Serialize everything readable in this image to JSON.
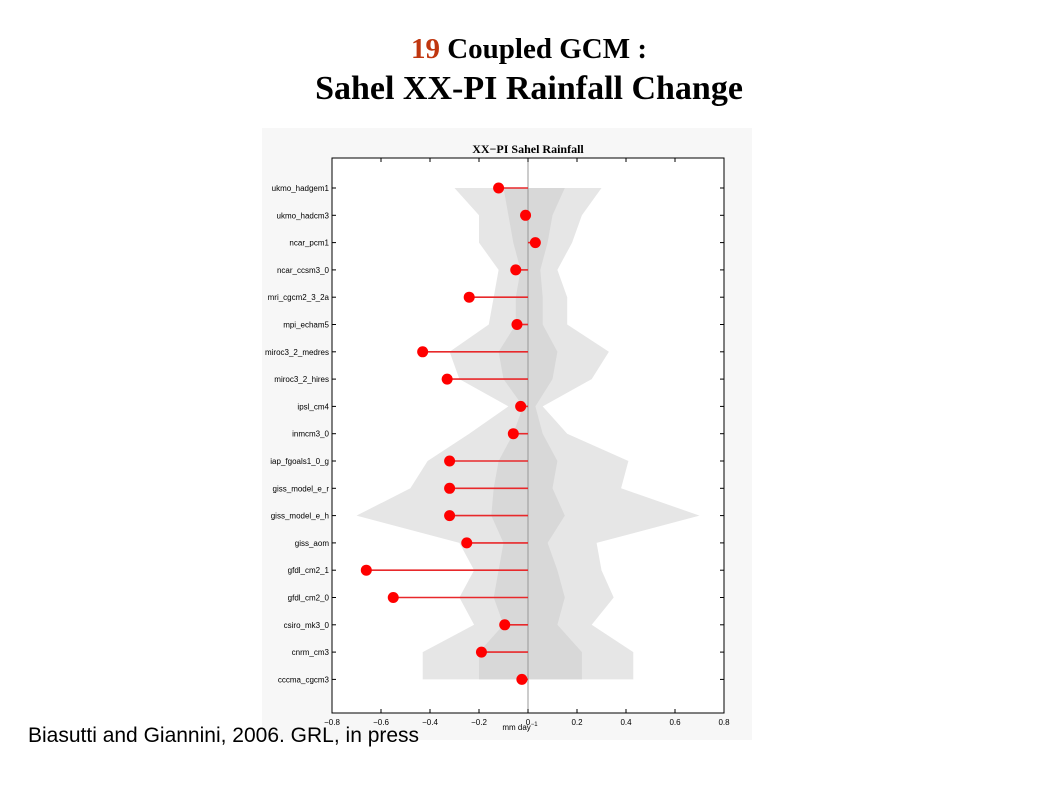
{
  "page": {
    "title_number": "19",
    "title_rest": " Coupled GCM :",
    "title_main": "Sahel XX-PI Rainfall Change",
    "citation": "Biasutti and Giannini, 2006. GRL, in press"
  },
  "chart_data": {
    "type": "lollipop",
    "title": "XX−PI Sahel Rainfall",
    "xlabel": "mm day",
    "xlabel_superscript": "−1",
    "xlim": [
      -0.8,
      0.8
    ],
    "xticks": [
      -0.8,
      -0.6,
      -0.4,
      -0.2,
      0,
      0.2,
      0.4,
      0.6,
      0.8
    ],
    "xtick_labels": [
      "−0.8",
      "−0.6",
      "−0.4",
      "−0.2",
      "0",
      "0.2",
      "0.4",
      "0.6",
      "0.8"
    ],
    "categories": [
      "ukmo_hadgem1",
      "ukmo_hadcm3",
      "ncar_pcm1",
      "ncar_ccsm3_0",
      "mri_cgcm2_3_2a",
      "mpi_echam5",
      "miroc3_2_medres",
      "miroc3_2_hires",
      "ipsl_cm4",
      "inmcm3_0",
      "iap_fgoals1_0_g",
      "giss_model_e_r",
      "giss_model_e_h",
      "giss_aom",
      "gfdl_cm2_1",
      "gfdl_cm2_0",
      "csiro_mk3_0",
      "cnrm_cm3",
      "cccma_cgcm3"
    ],
    "values": [
      -0.12,
      -0.01,
      0.03,
      -0.05,
      -0.24,
      -0.045,
      -0.43,
      -0.33,
      -0.03,
      -0.06,
      -0.32,
      -0.32,
      -0.32,
      -0.25,
      -0.66,
      -0.55,
      -0.095,
      -0.19,
      -0.025
    ],
    "band_outer": {
      "lower": [
        -0.3,
        -0.2,
        -0.2,
        -0.12,
        -0.14,
        -0.16,
        -0.32,
        -0.28,
        -0.08,
        -0.24,
        -0.41,
        -0.48,
        -0.7,
        -0.28,
        -0.22,
        -0.28,
        -0.22,
        -0.43,
        -0.43
      ],
      "upper": [
        0.3,
        0.22,
        0.18,
        0.12,
        0.16,
        0.16,
        0.33,
        0.26,
        0.06,
        0.16,
        0.41,
        0.38,
        0.7,
        0.28,
        0.3,
        0.35,
        0.26,
        0.43,
        0.43
      ]
    },
    "band_inner": {
      "lower": [
        -0.1,
        -0.08,
        -0.06,
        -0.03,
        -0.05,
        -0.05,
        -0.12,
        -0.1,
        -0.02,
        -0.06,
        -0.12,
        -0.14,
        -0.15,
        -0.1,
        -0.12,
        -0.14,
        -0.1,
        -0.2,
        -0.2
      ],
      "upper": [
        0.15,
        0.1,
        0.08,
        0.05,
        0.06,
        0.06,
        0.12,
        0.1,
        0.03,
        0.06,
        0.12,
        0.1,
        0.15,
        0.08,
        0.12,
        0.15,
        0.12,
        0.22,
        0.22
      ]
    },
    "colors": {
      "marker": "#ff0000",
      "stem": "#e8292b",
      "band_outer": "#e6e6e6",
      "band_inner": "#d8d8d8",
      "zero_line": "#999999"
    }
  }
}
